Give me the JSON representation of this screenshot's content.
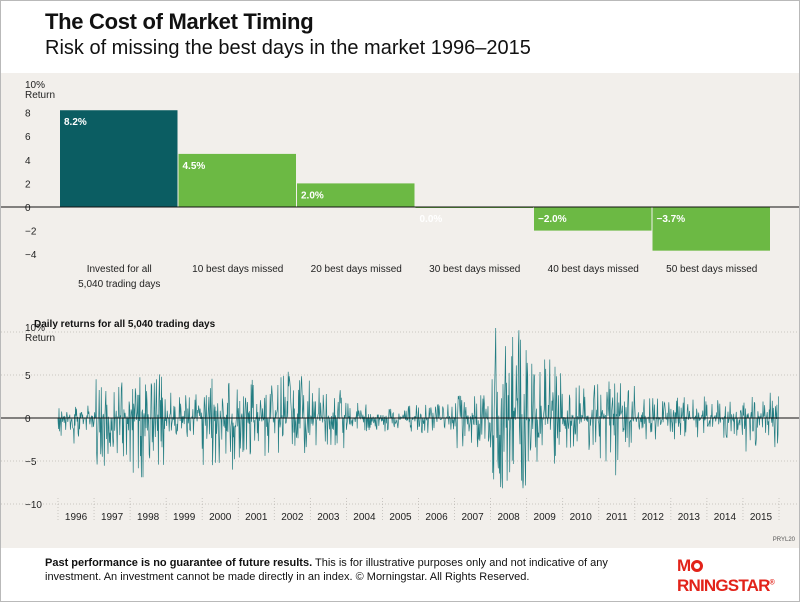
{
  "header": {
    "title": "The Cost of Market Timing",
    "subtitle": "Risk of missing the best days in the market 1996–2015"
  },
  "footer": {
    "bold_text": "Past performance is no guarantee of future results.",
    "text": " This is for illustrative purposes only and not indicative of any investment. An investment cannot be made directly in an index. © Morningstar. All Rights Reserved.",
    "code": "PRYL20",
    "brand_pre": "M",
    "brand_post": "RNINGSTAR",
    "brand_reg": "®"
  },
  "colors": {
    "dark_teal": "#0b5d62",
    "green": "#6cb944",
    "daily_line": "#237d82",
    "background": "#f2efeb",
    "brand_red": "#e2231a"
  },
  "chart_data": [
    {
      "type": "bar",
      "title": "",
      "ylabel": "Return",
      "ytick_top_label": "10%",
      "yticks": [
        -4,
        -2,
        0,
        2,
        4,
        6,
        8
      ],
      "ylim": [
        -4,
        10
      ],
      "grid": false,
      "categories": [
        [
          "Invested for all",
          "5,040 trading days"
        ],
        [
          "10 best days missed"
        ],
        [
          "20 best days missed"
        ],
        [
          "30 best days missed"
        ],
        [
          "40 best days missed"
        ],
        [
          "50 best days missed"
        ]
      ],
      "values": [
        8.2,
        4.5,
        2.0,
        0.0,
        -2.0,
        -3.7
      ],
      "data_labels": [
        "8.2%",
        "4.5%",
        "2.0%",
        "0.0%",
        "−2.0%",
        "−3.7%"
      ],
      "bar_colors": [
        "#0b5d62",
        "#6cb944",
        "#6cb944",
        "#6cb944",
        "#6cb944",
        "#6cb944"
      ]
    },
    {
      "type": "line",
      "title": "Daily returns for all 5,040 trading days",
      "ylabel": "Return",
      "ytick_top_label": "10%",
      "yticks": [
        -10,
        -5,
        0,
        5
      ],
      "ylim": [
        -10,
        10
      ],
      "x": [
        "1996",
        "1997",
        "1998",
        "1999",
        "2000",
        "2001",
        "2002",
        "2003",
        "2004",
        "2005",
        "2006",
        "2007",
        "2008",
        "2009",
        "2010",
        "2011",
        "2012",
        "2013",
        "2014",
        "2015"
      ],
      "series": [
        {
          "values_description": "daily percent returns",
          "annual_range_high": [
            1.5,
            5.0,
            5.2,
            3.5,
            4.6,
            4.8,
            5.5,
            3.5,
            1.8,
            1.5,
            1.7,
            2.8,
            11.0,
            6.8,
            4.3,
            4.6,
            2.3,
            2.5,
            2.2,
            3.8
          ],
          "annual_range_low": [
            -3.0,
            -6.9,
            -6.9,
            -2.8,
            -6.0,
            -5.0,
            -4.2,
            -3.5,
            -1.6,
            -1.6,
            -1.8,
            -3.5,
            -9.0,
            -5.4,
            -3.9,
            -6.7,
            -2.5,
            -2.5,
            -2.3,
            -3.9
          ]
        }
      ]
    }
  ]
}
